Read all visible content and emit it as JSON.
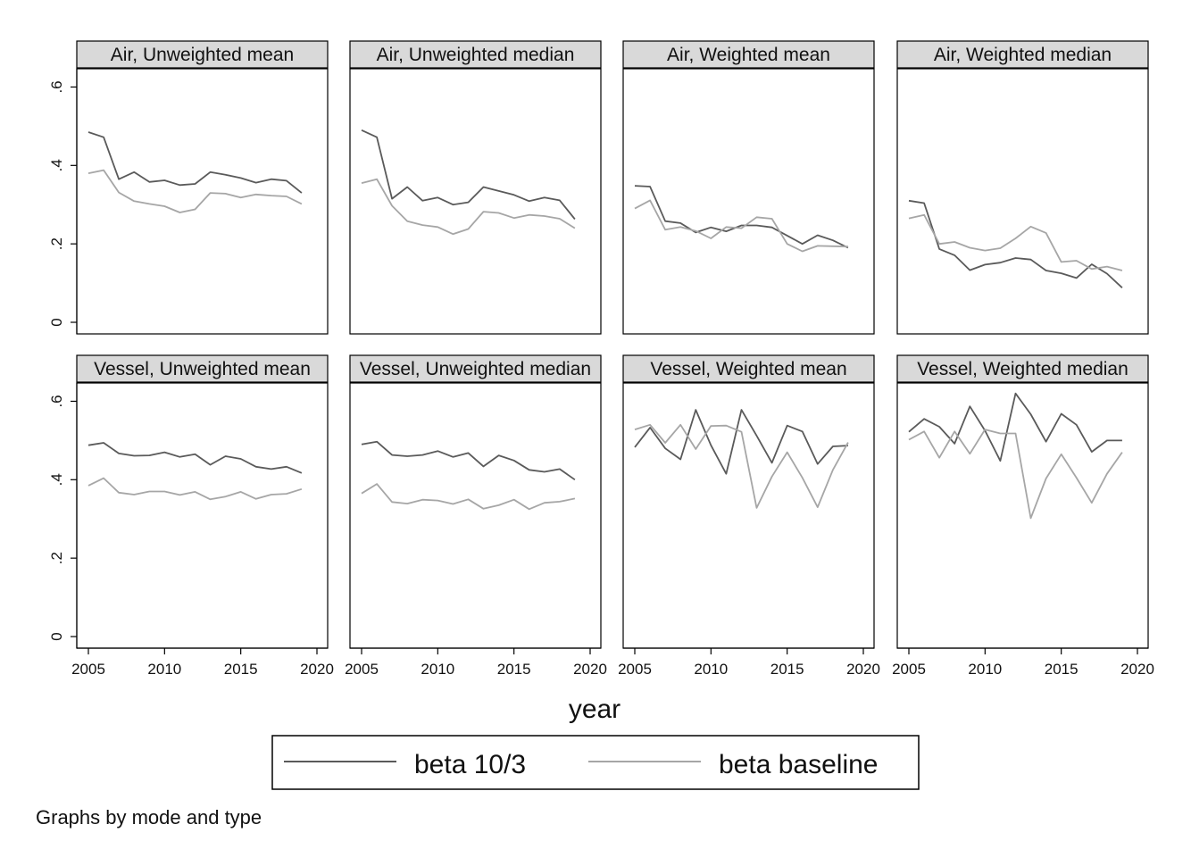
{
  "chart_data": {
    "type": "line",
    "xlabel": "year",
    "note": "Graphs by mode and type",
    "xlim": [
      2005,
      2020
    ],
    "ylim": [
      0,
      0.65
    ],
    "x_ticks": [
      "2005",
      "2010",
      "2015",
      "2020"
    ],
    "y_ticks": [
      "0",
      ".2",
      ".4",
      ".6"
    ],
    "grid": false,
    "legend_position": "bottom",
    "colors": {
      "beta 10/3": "#5a5a5a",
      "beta baseline": "#a6a6a6"
    },
    "legend": [
      {
        "name": "beta 10/3",
        "color": "#5a5a5a"
      },
      {
        "name": "beta baseline",
        "color": "#a6a6a6"
      }
    ],
    "x": [
      2005,
      2006,
      2007,
      2008,
      2009,
      2010,
      2011,
      2012,
      2013,
      2014,
      2015,
      2016,
      2017,
      2018,
      2019
    ],
    "panels": [
      {
        "title": "Air, Unweighted mean",
        "series": [
          {
            "name": "beta 10/3",
            "values": [
              0.485,
              0.472,
              0.365,
              0.383,
              0.358,
              0.362,
              0.35,
              0.353,
              0.383,
              0.376,
              0.368,
              0.356,
              0.365,
              0.361,
              0.33
            ]
          },
          {
            "name": "beta baseline",
            "values": [
              0.38,
              0.388,
              0.331,
              0.309,
              0.302,
              0.296,
              0.28,
              0.288,
              0.33,
              0.328,
              0.318,
              0.326,
              0.323,
              0.321,
              0.302
            ]
          }
        ]
      },
      {
        "title": "Air, Unweighted median",
        "series": [
          {
            "name": "beta 10/3",
            "values": [
              0.49,
              0.472,
              0.315,
              0.345,
              0.31,
              0.318,
              0.3,
              0.306,
              0.345,
              0.335,
              0.325,
              0.309,
              0.318,
              0.311,
              0.263
            ]
          },
          {
            "name": "beta baseline",
            "values": [
              0.355,
              0.365,
              0.297,
              0.258,
              0.248,
              0.243,
              0.225,
              0.238,
              0.282,
              0.279,
              0.266,
              0.274,
              0.271,
              0.264,
              0.24
            ]
          }
        ]
      },
      {
        "title": "Air, Weighted mean",
        "series": [
          {
            "name": "beta 10/3",
            "values": [
              0.348,
              0.346,
              0.258,
              0.253,
              0.229,
              0.242,
              0.232,
              0.247,
              0.247,
              0.242,
              0.221,
              0.2,
              0.222,
              0.209,
              0.19
            ]
          },
          {
            "name": "beta baseline",
            "values": [
              0.29,
              0.311,
              0.236,
              0.243,
              0.233,
              0.214,
              0.243,
              0.24,
              0.268,
              0.264,
              0.2,
              0.181,
              0.195,
              0.194,
              0.193
            ]
          }
        ]
      },
      {
        "title": "Air, Weighted median",
        "series": [
          {
            "name": "beta 10/3",
            "values": [
              0.31,
              0.304,
              0.187,
              0.171,
              0.133,
              0.147,
              0.152,
              0.164,
              0.16,
              0.132,
              0.125,
              0.113,
              0.148,
              0.124,
              0.088
            ]
          },
          {
            "name": "beta baseline",
            "values": [
              0.265,
              0.274,
              0.2,
              0.205,
              0.19,
              0.183,
              0.189,
              0.214,
              0.244,
              0.228,
              0.154,
              0.157,
              0.136,
              0.142,
              0.132
            ]
          }
        ]
      },
      {
        "title": "Vessel, Unweighted mean",
        "series": [
          {
            "name": "beta 10/3",
            "values": [
              0.488,
              0.494,
              0.467,
              0.461,
              0.462,
              0.47,
              0.458,
              0.465,
              0.438,
              0.46,
              0.453,
              0.433,
              0.427,
              0.433,
              0.417
            ]
          },
          {
            "name": "beta baseline",
            "values": [
              0.385,
              0.404,
              0.367,
              0.362,
              0.37,
              0.37,
              0.361,
              0.369,
              0.35,
              0.357,
              0.369,
              0.351,
              0.362,
              0.364,
              0.376
            ]
          }
        ]
      },
      {
        "title": "Vessel, Unweighted median",
        "series": [
          {
            "name": "beta 10/3",
            "values": [
              0.49,
              0.497,
              0.463,
              0.46,
              0.463,
              0.473,
              0.458,
              0.468,
              0.434,
              0.462,
              0.449,
              0.425,
              0.42,
              0.427,
              0.4
            ]
          },
          {
            "name": "beta baseline",
            "values": [
              0.365,
              0.389,
              0.343,
              0.339,
              0.349,
              0.347,
              0.338,
              0.35,
              0.326,
              0.335,
              0.349,
              0.325,
              0.341,
              0.344,
              0.352
            ]
          }
        ]
      },
      {
        "title": "Vessel, Weighted mean",
        "series": [
          {
            "name": "beta 10/3",
            "values": [
              0.483,
              0.533,
              0.48,
              0.452,
              0.578,
              0.488,
              0.415,
              0.578,
              0.512,
              0.443,
              0.538,
              0.523,
              0.44,
              0.485,
              0.487
            ]
          },
          {
            "name": "beta baseline",
            "values": [
              0.528,
              0.54,
              0.494,
              0.54,
              0.478,
              0.537,
              0.538,
              0.522,
              0.328,
              0.408,
              0.47,
              0.405,
              0.33,
              0.425,
              0.495
            ]
          }
        ]
      },
      {
        "title": "Vessel, Weighted median",
        "series": [
          {
            "name": "beta 10/3",
            "values": [
              0.522,
              0.555,
              0.535,
              0.492,
              0.587,
              0.525,
              0.448,
              0.62,
              0.567,
              0.497,
              0.568,
              0.54,
              0.471,
              0.5,
              0.5
            ]
          },
          {
            "name": "beta baseline",
            "values": [
              0.502,
              0.523,
              0.456,
              0.523,
              0.466,
              0.528,
              0.518,
              0.518,
              0.302,
              0.403,
              0.465,
              0.405,
              0.341,
              0.415,
              0.47
            ]
          }
        ]
      }
    ]
  }
}
